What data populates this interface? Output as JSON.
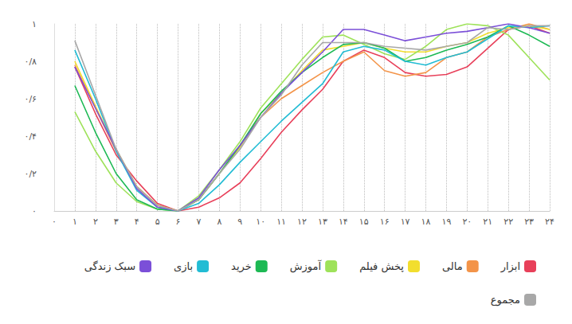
{
  "chart_data": {
    "type": "line",
    "categories": [
      "۰",
      "۱",
      "۲",
      "۳",
      "۴",
      "۵",
      "۶",
      "۷",
      "۸",
      "۹",
      "۱۰",
      "۱۱",
      "۱۲",
      "۱۳",
      "۱۴",
      "۱۵",
      "۱۶",
      "۱۷",
      "۱۸",
      "۱۹",
      "۲۰",
      "۲۱",
      "۲۲",
      "۲۳",
      "۲۴"
    ],
    "ylim": [
      0,
      1
    ],
    "yticks": [
      {
        "value": 0,
        "label": "۰"
      },
      {
        "value": 0.2,
        "label": "۰/۲"
      },
      {
        "value": 0.4,
        "label": "۰/۴"
      },
      {
        "value": 0.6,
        "label": "۰/۶"
      },
      {
        "value": 0.8,
        "label": "۰/۸"
      },
      {
        "value": 1,
        "label": "۱"
      }
    ],
    "grid": true,
    "legend": "bottom",
    "series": [
      {
        "name": "ابزار",
        "color": "#e8405a",
        "values": [
          null,
          0.77,
          0.52,
          0.3,
          0.16,
          0.04,
          0,
          0.02,
          0.07,
          0.15,
          0.28,
          0.42,
          0.54,
          0.65,
          0.8,
          0.86,
          0.82,
          0.74,
          0.72,
          0.73,
          0.77,
          0.87,
          0.97,
          0.99,
          0.95
        ]
      },
      {
        "name": "مالی",
        "color": "#f39449",
        "values": [
          null,
          0.78,
          0.55,
          0.32,
          0.13,
          0.03,
          0,
          0.06,
          0.2,
          0.35,
          0.5,
          0.6,
          0.67,
          0.74,
          0.8,
          0.85,
          0.75,
          0.72,
          0.74,
          0.82,
          0.85,
          0.93,
          0.97,
          1,
          0.97
        ]
      },
      {
        "name": "پخش فیلم",
        "color": "#f2de2e",
        "values": [
          null,
          0.8,
          0.56,
          0.33,
          0.13,
          0.03,
          0,
          0.06,
          0.2,
          0.34,
          0.52,
          0.63,
          0.75,
          0.86,
          0.88,
          0.9,
          0.87,
          0.85,
          0.85,
          0.88,
          0.9,
          0.95,
          0.98,
          0.99,
          0.97
        ]
      },
      {
        "name": "آموزش",
        "color": "#9ee25a",
        "values": [
          null,
          0.53,
          0.32,
          0.15,
          0.05,
          0.01,
          0,
          0.08,
          0.22,
          0.37,
          0.55,
          0.68,
          0.81,
          0.93,
          0.94,
          0.89,
          0.84,
          0.81,
          0.88,
          0.97,
          1,
          0.99,
          0.94,
          0.82,
          0.7
        ]
      },
      {
        "name": "خرید",
        "color": "#1db954",
        "values": [
          null,
          0.67,
          0.42,
          0.2,
          0.06,
          0.01,
          0,
          0.06,
          0.2,
          0.35,
          0.52,
          0.64,
          0.74,
          0.82,
          0.89,
          0.9,
          0.87,
          0.8,
          0.82,
          0.86,
          0.89,
          0.93,
          0.99,
          0.94,
          0.88
        ]
      },
      {
        "name": "بازی",
        "color": "#22bcd4",
        "values": [
          null,
          0.86,
          0.6,
          0.32,
          0.11,
          0.02,
          0,
          0.04,
          0.14,
          0.26,
          0.37,
          0.48,
          0.58,
          0.68,
          0.85,
          0.88,
          0.86,
          0.8,
          0.78,
          0.82,
          0.85,
          0.92,
          0.99,
          0.98,
          0.99
        ]
      },
      {
        "name": "سبک زندگی",
        "color": "#7b4fd8",
        "values": [
          null,
          0.77,
          0.55,
          0.33,
          0.12,
          0.02,
          0,
          0.07,
          0.22,
          0.35,
          0.5,
          0.63,
          0.74,
          0.85,
          0.97,
          0.97,
          0.94,
          0.91,
          0.93,
          0.95,
          0.96,
          0.98,
          1,
          0.98,
          0.95
        ]
      },
      {
        "name": "مجموع",
        "color": "#a8a8a8",
        "values": [
          null,
          0.91,
          0.62,
          0.33,
          0.13,
          0.03,
          0,
          0.06,
          0.2,
          0.33,
          0.5,
          0.62,
          0.78,
          0.9,
          0.9,
          0.9,
          0.88,
          0.87,
          0.86,
          0.88,
          0.9,
          0.98,
          0.97,
          0.99,
          0.99
        ]
      }
    ]
  }
}
